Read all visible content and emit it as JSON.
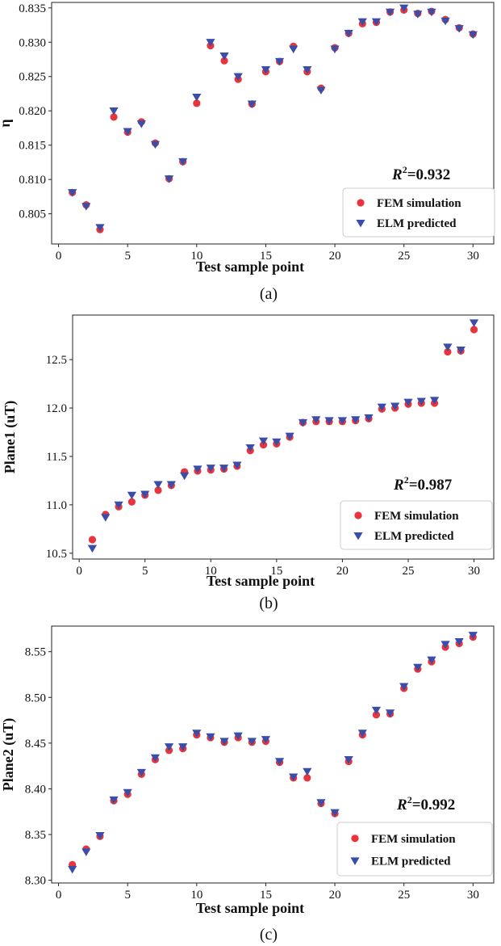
{
  "colors": {
    "fem": "#e8343a",
    "elm": "#3a4da8",
    "axis": "#222222"
  },
  "chart_data": [
    {
      "id": "a",
      "type": "scatter",
      "caption": "(a)",
      "xlabel": "Test sample point",
      "ylabel": "η",
      "xlim": [
        -0.5,
        31.5
      ],
      "ylim": [
        0.8006,
        0.8358
      ],
      "xticks": [
        0,
        5,
        10,
        15,
        20,
        25,
        30
      ],
      "yticks": [
        0.805,
        0.81,
        0.815,
        0.82,
        0.825,
        0.83,
        0.835
      ],
      "ytick_labels": [
        "0.805",
        "0.810",
        "0.815",
        "0.820",
        "0.825",
        "0.830",
        "0.835"
      ],
      "r2_label": "R",
      "r2_sup": "2",
      "r2_value": "=0.932",
      "legend_position": "lower-right",
      "x": [
        1,
        2,
        3,
        4,
        5,
        6,
        7,
        8,
        9,
        10,
        11,
        12,
        13,
        14,
        15,
        16,
        17,
        18,
        19,
        20,
        21,
        22,
        23,
        24,
        25,
        26,
        27,
        28,
        29,
        30
      ],
      "series": [
        {
          "name": "FEM simulation",
          "marker": "circle",
          "values": [
            0.8081,
            0.8063,
            0.8027,
            0.8191,
            0.8169,
            0.8184,
            0.8153,
            0.8101,
            0.8126,
            0.8211,
            0.8295,
            0.8273,
            0.8246,
            0.821,
            0.8257,
            0.8272,
            0.8294,
            0.8257,
            0.8233,
            0.8292,
            0.8313,
            0.8327,
            0.8329,
            0.8344,
            0.8347,
            0.8342,
            0.8345,
            0.8333,
            0.8321,
            0.8312
          ]
        },
        {
          "name": "ELM predicted",
          "marker": "triangle-down",
          "values": [
            0.8081,
            0.8061,
            0.803,
            0.82,
            0.817,
            0.8181,
            0.8151,
            0.8101,
            0.8126,
            0.822,
            0.83,
            0.828,
            0.825,
            0.821,
            0.826,
            0.8272,
            0.829,
            0.826,
            0.823,
            0.829,
            0.8313,
            0.833,
            0.833,
            0.8344,
            0.835,
            0.8341,
            0.8344,
            0.8331,
            0.832,
            0.8311
          ]
        }
      ]
    },
    {
      "id": "b",
      "type": "scatter",
      "caption": "(b)",
      "xlabel": "Test sample point",
      "ylabel": "Plane1 (uT)",
      "xlim": [
        -0.5,
        31.5
      ],
      "ylim": [
        10.44,
        12.96
      ],
      "xticks": [
        0,
        5,
        10,
        15,
        20,
        25,
        30
      ],
      "yticks": [
        10.5,
        11.0,
        11.5,
        12.0,
        12.5
      ],
      "ytick_labels": [
        "10.5",
        "11.0",
        "11.5",
        "12.0",
        "12.5"
      ],
      "r2_label": "R",
      "r2_sup": "2",
      "r2_value": "=0.987",
      "legend_position": "lower-right",
      "x": [
        1,
        2,
        3,
        4,
        5,
        6,
        7,
        8,
        9,
        10,
        11,
        12,
        13,
        14,
        15,
        16,
        17,
        18,
        19,
        20,
        21,
        22,
        23,
        24,
        25,
        26,
        27,
        28,
        29,
        30
      ],
      "series": [
        {
          "name": "FEM simulation",
          "marker": "circle",
          "values": [
            10.64,
            10.9,
            10.98,
            11.03,
            11.1,
            11.15,
            11.2,
            11.34,
            11.35,
            11.36,
            11.37,
            11.4,
            11.56,
            11.62,
            11.63,
            11.7,
            11.85,
            11.86,
            11.86,
            11.86,
            11.87,
            11.89,
            11.99,
            12.0,
            12.04,
            12.05,
            12.05,
            12.58,
            12.59,
            12.81
          ]
        },
        {
          "name": "ELM predicted",
          "marker": "triangle-down",
          "values": [
            10.55,
            10.87,
            11.0,
            11.1,
            11.11,
            11.21,
            11.21,
            11.3,
            11.37,
            11.38,
            11.38,
            11.41,
            11.59,
            11.66,
            11.65,
            11.71,
            11.85,
            11.88,
            11.87,
            11.87,
            11.88,
            11.9,
            12.01,
            12.02,
            12.06,
            12.07,
            12.08,
            12.63,
            12.6,
            12.88
          ]
        }
      ]
    },
    {
      "id": "c",
      "type": "scatter",
      "caption": "(c)",
      "xlabel": "Test sample point",
      "ylabel": "Plane2 (uT)",
      "xlim": [
        -0.5,
        31.5
      ],
      "ylim": [
        8.297,
        8.578
      ],
      "xticks": [
        0,
        5,
        10,
        15,
        20,
        25,
        30
      ],
      "yticks": [
        8.3,
        8.35,
        8.4,
        8.45,
        8.5,
        8.55
      ],
      "ytick_labels": [
        "8.30",
        "8.35",
        "8.40",
        "8.45",
        "8.50",
        "8.55"
      ],
      "r2_label": "R",
      "r2_sup": "2",
      "r2_value": "=0.992",
      "legend_position": "lower-right",
      "x": [
        1,
        2,
        3,
        4,
        5,
        6,
        7,
        8,
        9,
        10,
        11,
        12,
        13,
        14,
        15,
        16,
        17,
        18,
        19,
        20,
        21,
        22,
        23,
        24,
        25,
        26,
        27,
        28,
        29,
        30
      ],
      "series": [
        {
          "name": "FEM simulation",
          "marker": "circle",
          "values": [
            8.317,
            8.334,
            8.348,
            8.387,
            8.394,
            8.416,
            8.432,
            8.442,
            8.444,
            8.459,
            8.456,
            8.451,
            8.456,
            8.451,
            8.452,
            8.429,
            8.412,
            8.412,
            8.384,
            8.373,
            8.43,
            8.459,
            8.481,
            8.482,
            8.51,
            8.531,
            8.539,
            8.555,
            8.559,
            8.566
          ]
        },
        {
          "name": "ELM predicted",
          "marker": "triangle-down",
          "values": [
            8.312,
            8.331,
            8.349,
            8.388,
            8.396,
            8.418,
            8.434,
            8.446,
            8.446,
            8.461,
            8.457,
            8.452,
            8.458,
            8.452,
            8.454,
            8.43,
            8.413,
            8.419,
            8.385,
            8.374,
            8.432,
            8.461,
            8.486,
            8.483,
            8.512,
            8.533,
            8.541,
            8.558,
            8.561,
            8.568
          ]
        }
      ]
    }
  ]
}
